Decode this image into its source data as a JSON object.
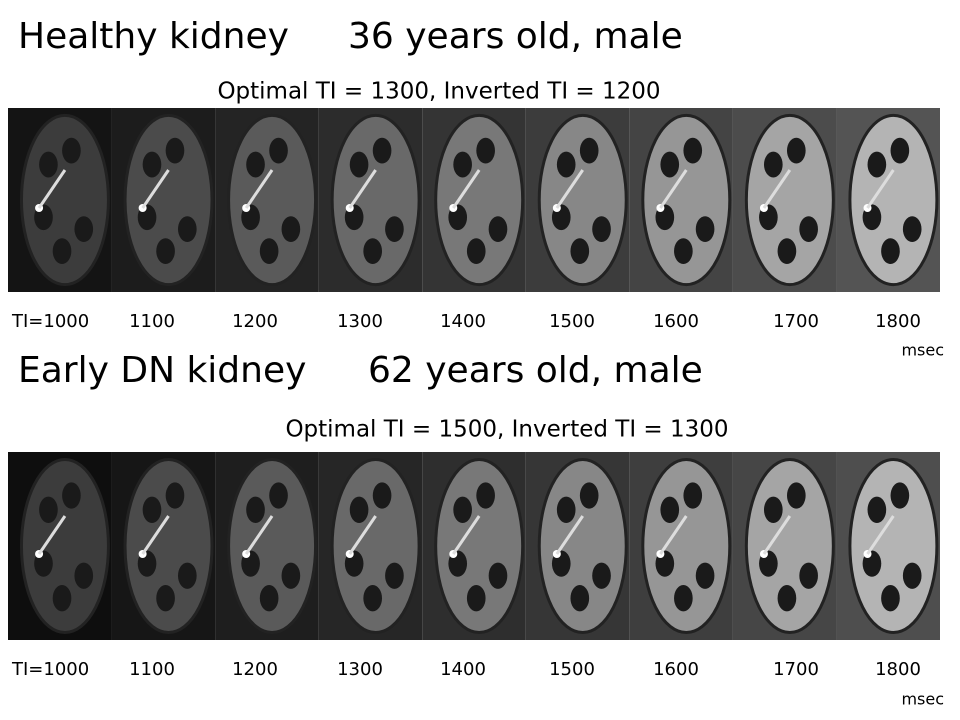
{
  "panels": [
    {
      "title": "Healthy kidney",
      "patient": "36 years old, male",
      "subtitle": "Optimal TI = 1300, Inverted TI = 1200",
      "labels": [
        "TI=1000",
        "1100",
        "1200",
        "1300",
        "1400",
        "1500",
        "1600",
        "1700",
        "1800"
      ],
      "unit": "msec"
    },
    {
      "title": "Early DN kidney",
      "patient": "62 years old, male",
      "subtitle": "Optimal TI = 1500, Inverted TI = 1300",
      "labels": [
        "TI=1000",
        "1100",
        "1200",
        "1300",
        "1400",
        "1500",
        "1600",
        "1700",
        "1800"
      ],
      "unit": "msec"
    }
  ]
}
